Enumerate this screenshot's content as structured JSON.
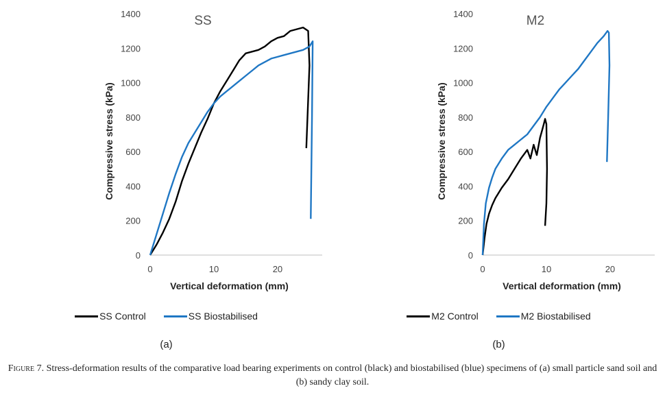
{
  "chart_data": [
    {
      "type": "line",
      "title": "SS",
      "xlabel": "Vertical deformation (mm)",
      "ylabel": "Compressive stress (kPa)",
      "xlim": [
        0,
        27
      ],
      "ylim": [
        0,
        1400
      ],
      "xticks": [
        "0",
        "10",
        "20"
      ],
      "yticks": [
        "0",
        "200",
        "400",
        "600",
        "800",
        "1000",
        "1200",
        "1400"
      ],
      "grid": false,
      "legend": "bottom",
      "series": [
        {
          "name": "SS Control",
          "color": "#000000",
          "x": [
            0,
            1,
            2,
            3,
            4,
            5,
            6,
            7,
            8,
            9,
            10,
            11,
            12,
            13,
            14,
            15,
            16,
            17,
            18,
            19,
            20,
            21,
            22,
            23,
            24,
            24.8,
            25,
            24.5
          ],
          "y": [
            0,
            60,
            130,
            210,
            310,
            430,
            530,
            620,
            710,
            790,
            880,
            950,
            1010,
            1070,
            1130,
            1170,
            1180,
            1190,
            1210,
            1240,
            1260,
            1270,
            1300,
            1310,
            1320,
            1300,
            1100,
            620
          ]
        },
        {
          "name": "SS Biostabilised",
          "color": "#1f77c4",
          "x": [
            0,
            1,
            2,
            3,
            4,
            5,
            6,
            7,
            8,
            9,
            10,
            11,
            12,
            13,
            14,
            15,
            16,
            17,
            18,
            19,
            20,
            21,
            22,
            23,
            24,
            25,
            25.5,
            25.4,
            25.2
          ],
          "y": [
            0,
            120,
            240,
            360,
            470,
            570,
            650,
            710,
            770,
            830,
            880,
            920,
            950,
            980,
            1010,
            1040,
            1070,
            1100,
            1120,
            1140,
            1150,
            1160,
            1170,
            1180,
            1190,
            1210,
            1240,
            800,
            210
          ]
        }
      ]
    },
    {
      "type": "line",
      "title": "M2",
      "xlabel": "Vertical deformation (mm)",
      "ylabel": "Compressive stress (kPa)",
      "xlim": [
        0,
        27
      ],
      "ylim": [
        0,
        1400
      ],
      "xticks": [
        "0",
        "10",
        "20"
      ],
      "yticks": [
        "0",
        "200",
        "400",
        "600",
        "800",
        "1000",
        "1200",
        "1400"
      ],
      "grid": false,
      "legend": "bottom",
      "series": [
        {
          "name": "M2 Control",
          "color": "#000000",
          "x": [
            0,
            0.3,
            0.6,
            1,
            1.5,
            2,
            3,
            4,
            5,
            6,
            7,
            7.5,
            8,
            8.5,
            9,
            9.3,
            9.6,
            9.8,
            10,
            10.1,
            10,
            9.8
          ],
          "y": [
            0,
            100,
            180,
            240,
            290,
            330,
            390,
            440,
            500,
            560,
            610,
            560,
            640,
            580,
            680,
            720,
            760,
            790,
            760,
            500,
            300,
            170
          ]
        },
        {
          "name": "M2 Biostabilised",
          "color": "#1f77c4",
          "x": [
            0,
            0.2,
            0.5,
            1,
            1.5,
            2,
            3,
            4,
            5,
            6,
            7,
            8,
            9,
            10,
            11,
            12,
            13,
            14,
            15,
            16,
            17,
            18,
            19,
            19.6,
            19.8,
            19.9,
            19.7,
            19.5
          ],
          "y": [
            0,
            180,
            300,
            390,
            450,
            500,
            560,
            610,
            640,
            670,
            700,
            750,
            800,
            860,
            910,
            960,
            1000,
            1040,
            1080,
            1130,
            1180,
            1230,
            1270,
            1300,
            1290,
            1100,
            800,
            540
          ]
        }
      ]
    }
  ],
  "legend_a": [
    {
      "name": "SS Control",
      "color": "#000000"
    },
    {
      "name": "SS Biostabilised",
      "color": "#1f77c4"
    }
  ],
  "legend_b": [
    {
      "name": "M2 Control",
      "color": "#000000"
    },
    {
      "name": "M2 Biostabilised",
      "color": "#1f77c4"
    }
  ],
  "panel_labels": {
    "a": "(a)",
    "b": "(b)"
  },
  "caption": {
    "prefix": "Figure",
    "text": " 7. Stress-deformation results of the comparative load bearing experiments on control (black) and biostabilised (blue) specimens of (a) small particle sand soil and (b) sandy clay soil."
  }
}
